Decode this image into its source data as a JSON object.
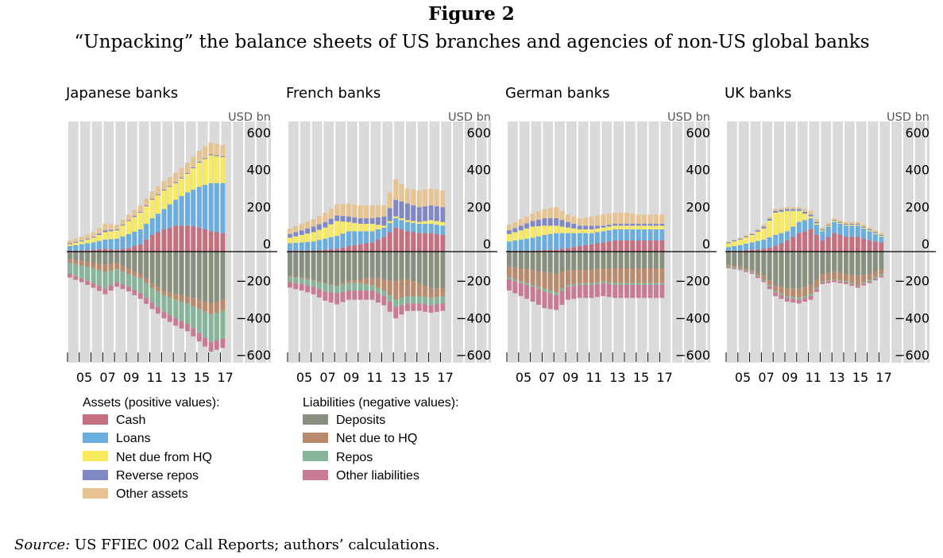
{
  "figure": {
    "label": "Figure 2",
    "title": "“Unpacking” the balance sheets of US branches and agencies of non-US global banks"
  },
  "legend": {
    "assets_heading": "Assets (positive values):",
    "liabilities_heading": "Liabilities (negative values):",
    "assets": [
      {
        "name": "Cash",
        "color": "#c4707f"
      },
      {
        "name": "Loans",
        "color": "#6aaee0"
      },
      {
        "name": "Net due from HQ",
        "color": "#f9e95c"
      },
      {
        "name": "Reverse repos",
        "color": "#8088c5"
      },
      {
        "name": "Other assets",
        "color": "#e6c38f"
      }
    ],
    "liabilities": [
      {
        "name": "Deposits",
        "color": "#878f7e"
      },
      {
        "name": "Net due to HQ",
        "color": "#b98b6c"
      },
      {
        "name": "Repos",
        "color": "#86b59a"
      },
      {
        "name": "Other liabilities",
        "color": "#c97b93"
      }
    ]
  },
  "source": {
    "label": "Source:",
    "text": "US FFIEC 002 Call Reports; authors’ calculations."
  },
  "chart_data": [
    {
      "type": "area",
      "title": "Japanese banks",
      "unit": "USD bn",
      "ylim": [
        -600,
        600
      ],
      "yticks": [
        600,
        400,
        200,
        0,
        -200,
        -400,
        -600
      ],
      "xtick_labels": [
        "05",
        "07",
        "09",
        "11",
        "13",
        "15",
        "17"
      ],
      "x": [
        2004,
        2005,
        2006,
        2007,
        2008,
        2009,
        2010,
        2011,
        2012,
        2013,
        2014,
        2015,
        2016,
        2017
      ],
      "assets": [
        {
          "name": "Cash",
          "values": [
            5,
            5,
            10,
            15,
            10,
            20,
            40,
            90,
            120,
            140,
            140,
            130,
            110,
            100
          ]
        },
        {
          "name": "Loans",
          "values": [
            25,
            35,
            40,
            50,
            60,
            75,
            80,
            90,
            110,
            140,
            180,
            220,
            260,
            270
          ]
        },
        {
          "name": "Net due from HQ",
          "values": [
            10,
            15,
            25,
            40,
            45,
            70,
            90,
            100,
            100,
            90,
            100,
            130,
            150,
            140
          ]
        },
        {
          "name": "Reverse repos",
          "values": [
            5,
            5,
            5,
            10,
            5,
            5,
            5,
            5,
            5,
            5,
            5,
            5,
            5,
            5
          ]
        },
        {
          "name": "Other assets",
          "values": [
            15,
            20,
            25,
            35,
            25,
            30,
            35,
            40,
            45,
            50,
            55,
            60,
            65,
            60
          ]
        }
      ],
      "liabilities": [
        {
          "name": "Deposits",
          "values": [
            -40,
            -50,
            -60,
            -70,
            -60,
            -90,
            -120,
            -170,
            -210,
            -230,
            -240,
            -260,
            -280,
            -260
          ]
        },
        {
          "name": "Net due to HQ",
          "values": [
            -20,
            -25,
            -30,
            -40,
            -35,
            -30,
            -25,
            -25,
            -25,
            -30,
            -40,
            -50,
            -60,
            -60
          ]
        },
        {
          "name": "Repos",
          "values": [
            -60,
            -70,
            -80,
            -90,
            -70,
            -70,
            -80,
            -80,
            -90,
            -100,
            -110,
            -130,
            -150,
            -150
          ]
        },
        {
          "name": "Other liabilities",
          "values": [
            -20,
            -20,
            -25,
            -30,
            -25,
            -25,
            -30,
            -35,
            -35,
            -40,
            -40,
            -45,
            -50,
            -50
          ]
        }
      ]
    },
    {
      "type": "area",
      "title": "French banks",
      "unit": "USD bn",
      "ylim": [
        -600,
        600
      ],
      "yticks": [
        600,
        400,
        200,
        0,
        -200,
        -400,
        -600
      ],
      "xtick_labels": [
        "05",
        "07",
        "09",
        "11",
        "13",
        "15",
        "17"
      ],
      "x": [
        2004,
        2005,
        2006,
        2007,
        2008,
        2009,
        2010,
        2011,
        2012,
        2013,
        2014,
        2015,
        2016,
        2017
      ],
      "assets": [
        {
          "name": "Cash",
          "values": [
            5,
            5,
            5,
            10,
            15,
            30,
            40,
            50,
            80,
            130,
            110,
            100,
            100,
            90
          ]
        },
        {
          "name": "Loans",
          "values": [
            40,
            45,
            50,
            60,
            70,
            80,
            70,
            60,
            50,
            50,
            50,
            50,
            50,
            50
          ]
        },
        {
          "name": "Net due from HQ",
          "values": [
            30,
            40,
            50,
            60,
            80,
            50,
            40,
            40,
            10,
            10,
            10,
            10,
            20,
            20
          ]
        },
        {
          "name": "Reverse repos",
          "values": [
            20,
            25,
            30,
            30,
            30,
            30,
            30,
            30,
            50,
            90,
            90,
            80,
            80,
            80
          ]
        },
        {
          "name": "Other assets",
          "values": [
            30,
            35,
            40,
            50,
            60,
            70,
            70,
            70,
            60,
            110,
            80,
            90,
            90,
            90
          ]
        }
      ],
      "liabilities": [
        {
          "name": "Deposits",
          "values": [
            -130,
            -140,
            -150,
            -170,
            -180,
            -160,
            -150,
            -140,
            -150,
            -160,
            -150,
            -170,
            -200,
            -200
          ]
        },
        {
          "name": "Net due to HQ",
          "values": [
            -5,
            -5,
            -5,
            -5,
            -5,
            -10,
            -20,
            -40,
            -60,
            -100,
            -90,
            -70,
            -50,
            -40
          ]
        },
        {
          "name": "Repos",
          "values": [
            -30,
            -30,
            -35,
            -40,
            -40,
            -40,
            -40,
            -30,
            -30,
            -40,
            -40,
            -40,
            -40,
            -40
          ]
        },
        {
          "name": "Other liabilities",
          "values": [
            -30,
            -35,
            -40,
            -50,
            -60,
            -50,
            -50,
            -50,
            -50,
            -60,
            -40,
            -40,
            -40,
            -40
          ]
        }
      ]
    },
    {
      "type": "area",
      "title": "German banks",
      "unit": "USD bn",
      "ylim": [
        -600,
        600
      ],
      "yticks": [
        600,
        400,
        200,
        0,
        -200,
        -400,
        -600
      ],
      "xtick_labels": [
        "05",
        "07",
        "09",
        "11",
        "13",
        "15",
        "17"
      ],
      "x": [
        2004,
        2005,
        2006,
        2007,
        2008,
        2009,
        2010,
        2011,
        2012,
        2013,
        2014,
        2015,
        2016,
        2017
      ],
      "assets": [
        {
          "name": "Cash",
          "values": [
            5,
            5,
            5,
            10,
            10,
            20,
            30,
            40,
            50,
            60,
            60,
            60,
            60,
            60
          ]
        },
        {
          "name": "Loans",
          "values": [
            50,
            60,
            70,
            80,
            90,
            80,
            70,
            60,
            60,
            60,
            60,
            60,
            60,
            60
          ]
        },
        {
          "name": "Net due from HQ",
          "values": [
            40,
            50,
            60,
            50,
            40,
            30,
            20,
            20,
            20,
            20,
            20,
            20,
            20,
            20
          ]
        },
        {
          "name": "Reverse repos",
          "values": [
            20,
            25,
            30,
            40,
            40,
            30,
            20,
            20,
            10,
            10,
            10,
            10,
            10,
            10
          ]
        },
        {
          "name": "Other assets",
          "values": [
            30,
            35,
            40,
            50,
            60,
            40,
            40,
            50,
            60,
            60,
            60,
            50,
            50,
            50
          ]
        }
      ],
      "liabilities": [
        {
          "name": "Deposits",
          "values": [
            -80,
            -90,
            -100,
            -110,
            -120,
            -100,
            -100,
            -100,
            -90,
            -90,
            -90,
            -90,
            -90,
            -90
          ]
        },
        {
          "name": "Net due to HQ",
          "values": [
            -60,
            -70,
            -80,
            -90,
            -100,
            -80,
            -70,
            -70,
            -70,
            -80,
            -80,
            -80,
            -80,
            -80
          ]
        },
        {
          "name": "Repos",
          "values": [
            -10,
            -10,
            -10,
            -15,
            -15,
            -10,
            -10,
            -10,
            -10,
            -10,
            -10,
            -10,
            -10,
            -10
          ]
        },
        {
          "name": "Other liabilities",
          "values": [
            -60,
            -70,
            -80,
            -90,
            -80,
            -70,
            -70,
            -70,
            -70,
            -70,
            -70,
            -70,
            -70,
            -70
          ]
        }
      ]
    },
    {
      "type": "area",
      "title": "UK banks",
      "unit": "USD bn",
      "ylim": [
        -600,
        600
      ],
      "yticks": [
        600,
        400,
        200,
        0,
        -200,
        -400,
        -600
      ],
      "xtick_labels": [
        "05",
        "07",
        "09",
        "11",
        "13",
        "15",
        "17"
      ],
      "x": [
        2004,
        2005,
        2006,
        2007,
        2008,
        2009,
        2010,
        2011,
        2012,
        2013,
        2014,
        2015,
        2016,
        2017
      ],
      "assets": [
        {
          "name": "Cash",
          "values": [
            5,
            5,
            10,
            15,
            30,
            60,
            100,
            120,
            60,
            100,
            80,
            80,
            60,
            50
          ]
        },
        {
          "name": "Loans",
          "values": [
            20,
            30,
            40,
            50,
            60,
            50,
            60,
            60,
            50,
            60,
            60,
            60,
            50,
            30
          ]
        },
        {
          "name": "Net due from HQ",
          "values": [
            20,
            30,
            40,
            60,
            120,
            110,
            60,
            10,
            5,
            5,
            5,
            5,
            5,
            5
          ]
        },
        {
          "name": "Reverse repos",
          "values": [
            5,
            5,
            5,
            10,
            10,
            10,
            10,
            10,
            5,
            5,
            5,
            5,
            5,
            5
          ]
        },
        {
          "name": "Other assets",
          "values": [
            5,
            5,
            5,
            10,
            10,
            10,
            10,
            20,
            10,
            10,
            10,
            10,
            10,
            10
          ]
        }
      ],
      "liabilities": [
        {
          "name": "Deposits",
          "values": [
            -70,
            -80,
            -100,
            -130,
            -180,
            -200,
            -200,
            -180,
            -120,
            -110,
            -120,
            -130,
            -120,
            -100
          ]
        },
        {
          "name": "Net due to HQ",
          "values": [
            -10,
            -10,
            -10,
            -20,
            -30,
            -40,
            -50,
            -50,
            -40,
            -40,
            -40,
            -50,
            -30,
            -20
          ]
        },
        {
          "name": "Repos",
          "values": [
            -5,
            -5,
            -5,
            -5,
            -10,
            -10,
            -10,
            -10,
            -5,
            -5,
            -5,
            -5,
            -10,
            -10
          ]
        },
        {
          "name": "Other liabilities",
          "values": [
            -5,
            -5,
            -5,
            -10,
            -20,
            -20,
            -20,
            -20,
            -10,
            -10,
            -10,
            -10,
            -10,
            -10
          ]
        }
      ]
    }
  ]
}
